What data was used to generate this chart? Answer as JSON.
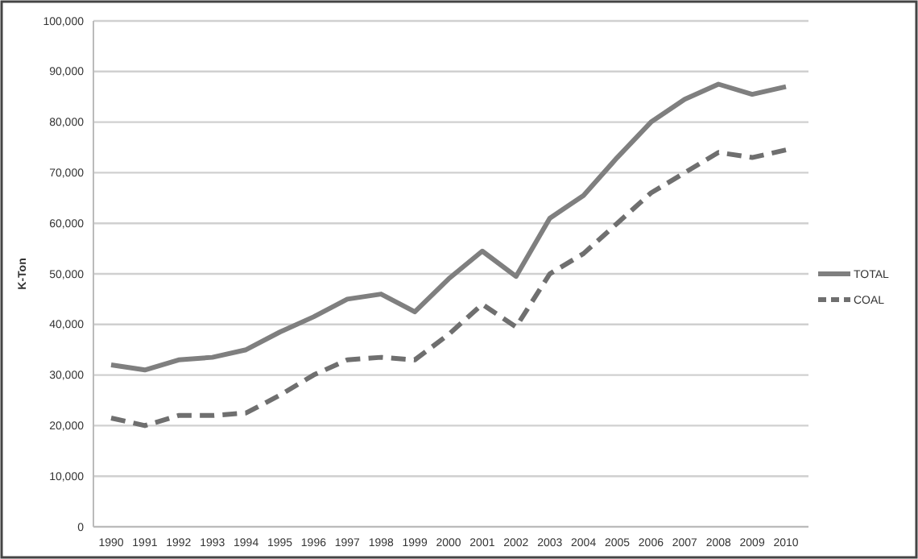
{
  "chart_data": {
    "type": "line",
    "ylabel": "K-Ton",
    "categories": [
      "1990",
      "1991",
      "1992",
      "1993",
      "1994",
      "1995",
      "1996",
      "1997",
      "1998",
      "1999",
      "2000",
      "2001",
      "2002",
      "2003",
      "2004",
      "2005",
      "2006",
      "2007",
      "2008",
      "2009",
      "2010"
    ],
    "series": [
      {
        "name": "TOTAL",
        "color": "#7f7f7f",
        "line_style": "solid",
        "values": [
          32000,
          31000,
          33000,
          33500,
          35000,
          38500,
          41500,
          45000,
          46000,
          42500,
          49000,
          54500,
          49500,
          61000,
          65500,
          73000,
          80000,
          84500,
          87500,
          85500,
          87000
        ]
      },
      {
        "name": "COAL",
        "color": "#6f6f6f",
        "line_style": "dashed",
        "values": [
          21500,
          20000,
          22000,
          22000,
          22500,
          26000,
          30000,
          33000,
          33500,
          33000,
          38000,
          44000,
          39500,
          50000,
          54000,
          60000,
          66000,
          70000,
          74000,
          73000,
          74500
        ]
      }
    ],
    "ylim": [
      0,
      100000
    ],
    "yticks": [
      0,
      {
        "value": 10000,
        "label": "10,000"
      },
      {
        "value": 20000,
        "label": "20,000"
      },
      {
        "value": 30000,
        "label": "30,000"
      },
      {
        "value": 40000,
        "label": "40,000"
      },
      {
        "value": 50000,
        "label": "50,000"
      },
      {
        "value": 60000,
        "label": "60,000"
      },
      {
        "value": 70000,
        "label": "70,000"
      },
      {
        "value": 80000,
        "label": "80,000"
      },
      {
        "value": 90000,
        "label": "90,000"
      },
      {
        "value": 100000,
        "label": "100,000"
      }
    ],
    "grid": "y",
    "legend": "right",
    "marker": "none"
  }
}
